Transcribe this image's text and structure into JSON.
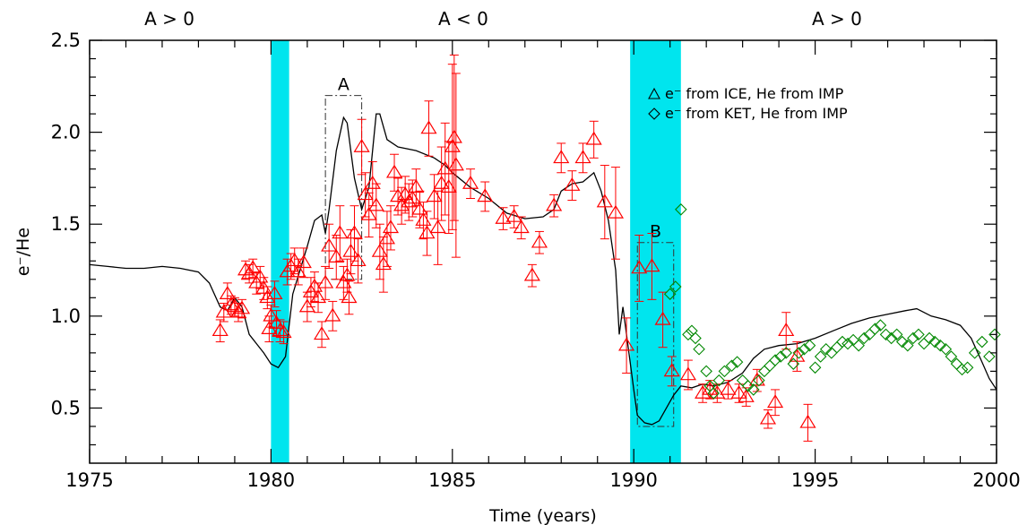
{
  "chart_data": {
    "type": "scatter",
    "xlabel": "Time (years)",
    "ylabel": "e⁻/He",
    "xlim": [
      1975,
      2000
    ],
    "ylim": [
      0.2,
      2.5
    ],
    "x_ticks": [
      1975,
      1980,
      1985,
      1990,
      1995,
      2000
    ],
    "y_ticks": [
      0.5,
      1.0,
      1.5,
      2.0,
      2.5
    ],
    "x_tick_labels": [
      "1975",
      "1980",
      "1985",
      "1990",
      "1995",
      "2000"
    ],
    "y_tick_labels": [
      "0.5",
      "1.0",
      "1.5",
      "2.0",
      "2.5"
    ],
    "grid": false,
    "legend_position": "top-right",
    "polarity_labels": [
      {
        "text": "A > 0",
        "x": 1977.2
      },
      {
        "text": "A < 0",
        "x": 1985.3
      },
      {
        "text": "A > 0",
        "x": 1995.6
      }
    ],
    "shaded_bands": [
      {
        "x0": 1980.0,
        "x1": 1980.5,
        "color": "#00e5ee"
      },
      {
        "x0": 1989.9,
        "x1": 1991.3,
        "color": "#00e5ee"
      }
    ],
    "annotation_boxes": [
      {
        "label": "A",
        "x0": 1981.5,
        "x1": 1982.5,
        "y0": 1.2,
        "y1": 2.2
      },
      {
        "label": "B",
        "x0": 1990.1,
        "x1": 1991.1,
        "y0": 0.4,
        "y1": 1.4
      }
    ],
    "series": [
      {
        "name": "e⁻ from ICE, He from IMP",
        "marker": "triangle",
        "color": "#ff0000",
        "points": [
          [
            1978.6,
            0.92,
            0.06
          ],
          [
            1978.7,
            1.02,
            0.05
          ],
          [
            1978.8,
            1.12,
            0.06
          ],
          [
            1978.9,
            1.06,
            0.05
          ],
          [
            1979.0,
            1.05,
            0.05
          ],
          [
            1979.1,
            1.02,
            0.05
          ],
          [
            1979.2,
            1.04,
            0.05
          ],
          [
            1979.3,
            1.25,
            0.05
          ],
          [
            1979.4,
            1.23,
            0.05
          ],
          [
            1979.5,
            1.26,
            0.05
          ],
          [
            1979.6,
            1.18,
            0.06
          ],
          [
            1979.7,
            1.21,
            0.06
          ],
          [
            1979.8,
            1.15,
            0.06
          ],
          [
            1979.9,
            1.1,
            0.06
          ],
          [
            1979.95,
            0.93,
            0.07
          ],
          [
            1980.0,
            1.0,
            0.06
          ],
          [
            1980.1,
            1.12,
            0.07
          ],
          [
            1980.15,
            0.96,
            0.07
          ],
          [
            1980.25,
            0.92,
            0.06
          ],
          [
            1980.35,
            0.91,
            0.06
          ],
          [
            1980.45,
            1.24,
            0.07
          ],
          [
            1980.55,
            1.27,
            0.07
          ],
          [
            1980.65,
            1.3,
            0.07
          ],
          [
            1980.75,
            1.24,
            0.07
          ],
          [
            1980.9,
            1.29,
            0.08
          ],
          [
            1981.0,
            1.05,
            0.08
          ],
          [
            1981.1,
            1.13,
            0.08
          ],
          [
            1981.2,
            1.16,
            0.08
          ],
          [
            1981.3,
            1.1,
            0.08
          ],
          [
            1981.4,
            0.9,
            0.07
          ],
          [
            1981.5,
            1.18,
            0.09
          ],
          [
            1981.6,
            1.38,
            0.12
          ],
          [
            1981.7,
            1.0,
            0.08
          ],
          [
            1981.8,
            1.32,
            0.12
          ],
          [
            1981.9,
            1.45,
            0.15
          ],
          [
            1982.0,
            1.18,
            0.09
          ],
          [
            1982.1,
            1.22,
            0.09
          ],
          [
            1982.15,
            1.1,
            0.09
          ],
          [
            1982.2,
            1.35,
            0.12
          ],
          [
            1982.3,
            1.45,
            0.15
          ],
          [
            1982.4,
            1.3,
            0.12
          ],
          [
            1982.5,
            1.92,
            0.15
          ],
          [
            1982.6,
            1.66,
            0.12
          ],
          [
            1982.7,
            1.55,
            0.12
          ],
          [
            1982.8,
            1.72,
            0.12
          ],
          [
            1982.9,
            1.6,
            0.12
          ],
          [
            1983.0,
            1.35,
            0.15
          ],
          [
            1983.1,
            1.28,
            0.15
          ],
          [
            1983.2,
            1.42,
            0.15
          ],
          [
            1983.3,
            1.48,
            0.12
          ],
          [
            1983.4,
            1.78,
            0.1
          ],
          [
            1983.5,
            1.65,
            0.1
          ],
          [
            1983.6,
            1.6,
            0.1
          ],
          [
            1983.7,
            1.66,
            0.1
          ],
          [
            1983.8,
            1.62,
            0.1
          ],
          [
            1983.9,
            1.64,
            0.1
          ],
          [
            1984.0,
            1.7,
            0.1
          ],
          [
            1984.1,
            1.58,
            0.1
          ],
          [
            1984.2,
            1.52,
            0.1
          ],
          [
            1984.3,
            1.45,
            0.12
          ],
          [
            1984.35,
            2.02,
            0.15
          ],
          [
            1984.5,
            1.65,
            0.12
          ],
          [
            1984.6,
            1.48,
            0.2
          ],
          [
            1984.7,
            1.72,
            0.2
          ],
          [
            1984.8,
            1.8,
            0.25
          ],
          [
            1984.9,
            1.7,
            0.25
          ],
          [
            1985.0,
            1.92,
            0.45
          ],
          [
            1985.05,
            1.97,
            0.45
          ],
          [
            1985.1,
            1.82,
            0.5
          ],
          [
            1985.5,
            1.72,
            0.08
          ],
          [
            1985.9,
            1.65,
            0.08
          ],
          [
            1986.4,
            1.53,
            0.06
          ],
          [
            1986.7,
            1.54,
            0.06
          ],
          [
            1986.9,
            1.48,
            0.06
          ],
          [
            1987.2,
            1.22,
            0.06
          ],
          [
            1987.4,
            1.4,
            0.06
          ],
          [
            1987.8,
            1.6,
            0.06
          ],
          [
            1988.0,
            1.86,
            0.08
          ],
          [
            1988.3,
            1.71,
            0.08
          ],
          [
            1988.6,
            1.86,
            0.08
          ],
          [
            1988.9,
            1.96,
            0.1
          ],
          [
            1989.2,
            1.62,
            0.2
          ],
          [
            1989.5,
            1.56,
            0.25
          ],
          [
            1989.8,
            0.84,
            0.15
          ],
          [
            1990.15,
            1.26,
            0.18
          ],
          [
            1990.5,
            1.27,
            0.18
          ],
          [
            1990.8,
            0.98,
            0.15
          ],
          [
            1991.05,
            0.7,
            0.08
          ],
          [
            1991.5,
            0.68,
            0.08
          ],
          [
            1991.9,
            0.58,
            0.05
          ],
          [
            1992.1,
            0.6,
            0.05
          ],
          [
            1992.3,
            0.58,
            0.05
          ],
          [
            1992.6,
            0.6,
            0.05
          ],
          [
            1992.9,
            0.58,
            0.05
          ],
          [
            1993.1,
            0.56,
            0.05
          ],
          [
            1993.4,
            0.65,
            0.06
          ],
          [
            1993.7,
            0.44,
            0.05
          ],
          [
            1993.9,
            0.53,
            0.07
          ],
          [
            1994.2,
            0.92,
            0.1
          ],
          [
            1994.5,
            0.78,
            0.08
          ],
          [
            1994.8,
            0.42,
            0.1
          ]
        ]
      },
      {
        "name": "e⁻ from KET, He from IMP",
        "marker": "diamond",
        "color": "#008800",
        "points": [
          [
            1991.0,
            1.12
          ],
          [
            1991.15,
            1.16
          ],
          [
            1991.3,
            1.58
          ],
          [
            1991.5,
            0.9
          ],
          [
            1991.6,
            0.92
          ],
          [
            1991.7,
            0.88
          ],
          [
            1991.8,
            0.82
          ],
          [
            1992.0,
            0.7
          ],
          [
            1992.1,
            0.62
          ],
          [
            1992.2,
            0.58
          ],
          [
            1992.35,
            0.65
          ],
          [
            1992.5,
            0.7
          ],
          [
            1992.7,
            0.73
          ],
          [
            1992.85,
            0.75
          ],
          [
            1993.0,
            0.65
          ],
          [
            1993.15,
            0.62
          ],
          [
            1993.3,
            0.6
          ],
          [
            1993.45,
            0.65
          ],
          [
            1993.6,
            0.7
          ],
          [
            1993.75,
            0.73
          ],
          [
            1993.9,
            0.76
          ],
          [
            1994.05,
            0.78
          ],
          [
            1994.2,
            0.8
          ],
          [
            1994.4,
            0.74
          ],
          [
            1994.55,
            0.8
          ],
          [
            1994.7,
            0.82
          ],
          [
            1994.85,
            0.84
          ],
          [
            1995.0,
            0.72
          ],
          [
            1995.15,
            0.78
          ],
          [
            1995.3,
            0.82
          ],
          [
            1995.45,
            0.8
          ],
          [
            1995.6,
            0.83
          ],
          [
            1995.75,
            0.86
          ],
          [
            1995.9,
            0.85
          ],
          [
            1996.05,
            0.87
          ],
          [
            1996.2,
            0.84
          ],
          [
            1996.35,
            0.88
          ],
          [
            1996.5,
            0.9
          ],
          [
            1996.65,
            0.93
          ],
          [
            1996.8,
            0.95
          ],
          [
            1996.95,
            0.9
          ],
          [
            1997.1,
            0.88
          ],
          [
            1997.25,
            0.9
          ],
          [
            1997.4,
            0.86
          ],
          [
            1997.55,
            0.84
          ],
          [
            1997.7,
            0.88
          ],
          [
            1997.85,
            0.9
          ],
          [
            1998.0,
            0.85
          ],
          [
            1998.15,
            0.88
          ],
          [
            1998.3,
            0.86
          ],
          [
            1998.45,
            0.84
          ],
          [
            1998.6,
            0.82
          ],
          [
            1998.75,
            0.78
          ],
          [
            1998.9,
            0.74
          ],
          [
            1999.05,
            0.71
          ],
          [
            1999.2,
            0.72
          ],
          [
            1999.4,
            0.8
          ],
          [
            1999.6,
            0.86
          ],
          [
            1999.8,
            0.78
          ],
          [
            1999.95,
            0.9
          ]
        ]
      },
      {
        "name": "",
        "type": "line",
        "color": "#000000",
        "points": [
          [
            1975.0,
            1.28
          ],
          [
            1975.5,
            1.27
          ],
          [
            1976.0,
            1.26
          ],
          [
            1976.5,
            1.26
          ],
          [
            1977.0,
            1.27
          ],
          [
            1977.5,
            1.26
          ],
          [
            1978.0,
            1.24
          ],
          [
            1978.3,
            1.18
          ],
          [
            1978.6,
            1.05
          ],
          [
            1978.8,
            1.03
          ],
          [
            1979.0,
            1.1
          ],
          [
            1979.2,
            1.05
          ],
          [
            1979.4,
            0.9
          ],
          [
            1979.6,
            0.85
          ],
          [
            1979.8,
            0.8
          ],
          [
            1980.0,
            0.74
          ],
          [
            1980.2,
            0.72
          ],
          [
            1980.4,
            0.78
          ],
          [
            1980.6,
            1.12
          ],
          [
            1980.8,
            1.25
          ],
          [
            1981.0,
            1.38
          ],
          [
            1981.2,
            1.52
          ],
          [
            1981.4,
            1.55
          ],
          [
            1981.5,
            1.45
          ],
          [
            1981.6,
            1.58
          ],
          [
            1981.8,
            1.9
          ],
          [
            1982.0,
            2.08
          ],
          [
            1982.1,
            2.05
          ],
          [
            1982.3,
            1.75
          ],
          [
            1982.5,
            1.58
          ],
          [
            1982.7,
            1.7
          ],
          [
            1982.9,
            2.1
          ],
          [
            1983.0,
            2.1
          ],
          [
            1983.2,
            1.96
          ],
          [
            1983.5,
            1.92
          ],
          [
            1984.0,
            1.9
          ],
          [
            1984.5,
            1.86
          ],
          [
            1984.8,
            1.82
          ],
          [
            1985.0,
            1.78
          ],
          [
            1985.5,
            1.7
          ],
          [
            1986.0,
            1.64
          ],
          [
            1986.5,
            1.56
          ],
          [
            1987.0,
            1.53
          ],
          [
            1987.5,
            1.54
          ],
          [
            1987.8,
            1.58
          ],
          [
            1988.0,
            1.68
          ],
          [
            1988.3,
            1.72
          ],
          [
            1988.6,
            1.73
          ],
          [
            1988.9,
            1.78
          ],
          [
            1989.1,
            1.68
          ],
          [
            1989.3,
            1.52
          ],
          [
            1989.5,
            1.25
          ],
          [
            1989.6,
            0.9
          ],
          [
            1989.7,
            1.05
          ],
          [
            1989.8,
            0.9
          ],
          [
            1990.0,
            0.6
          ],
          [
            1990.1,
            0.46
          ],
          [
            1990.3,
            0.42
          ],
          [
            1990.5,
            0.41
          ],
          [
            1990.7,
            0.43
          ],
          [
            1990.9,
            0.5
          ],
          [
            1991.1,
            0.57
          ],
          [
            1991.3,
            0.62
          ],
          [
            1991.6,
            0.61
          ],
          [
            1991.9,
            0.63
          ],
          [
            1992.2,
            0.62
          ],
          [
            1992.6,
            0.64
          ],
          [
            1993.0,
            0.69
          ],
          [
            1993.3,
            0.77
          ],
          [
            1993.6,
            0.82
          ],
          [
            1994.0,
            0.84
          ],
          [
            1994.5,
            0.85
          ],
          [
            1995.0,
            0.88
          ],
          [
            1995.5,
            0.92
          ],
          [
            1996.0,
            0.96
          ],
          [
            1996.5,
            0.99
          ],
          [
            1997.0,
            1.01
          ],
          [
            1997.5,
            1.03
          ],
          [
            1997.8,
            1.04
          ],
          [
            1998.2,
            1.0
          ],
          [
            1998.6,
            0.98
          ],
          [
            1999.0,
            0.95
          ],
          [
            1999.3,
            0.88
          ],
          [
            1999.6,
            0.75
          ],
          [
            1999.8,
            0.66
          ],
          [
            2000.0,
            0.6
          ]
        ]
      }
    ]
  }
}
